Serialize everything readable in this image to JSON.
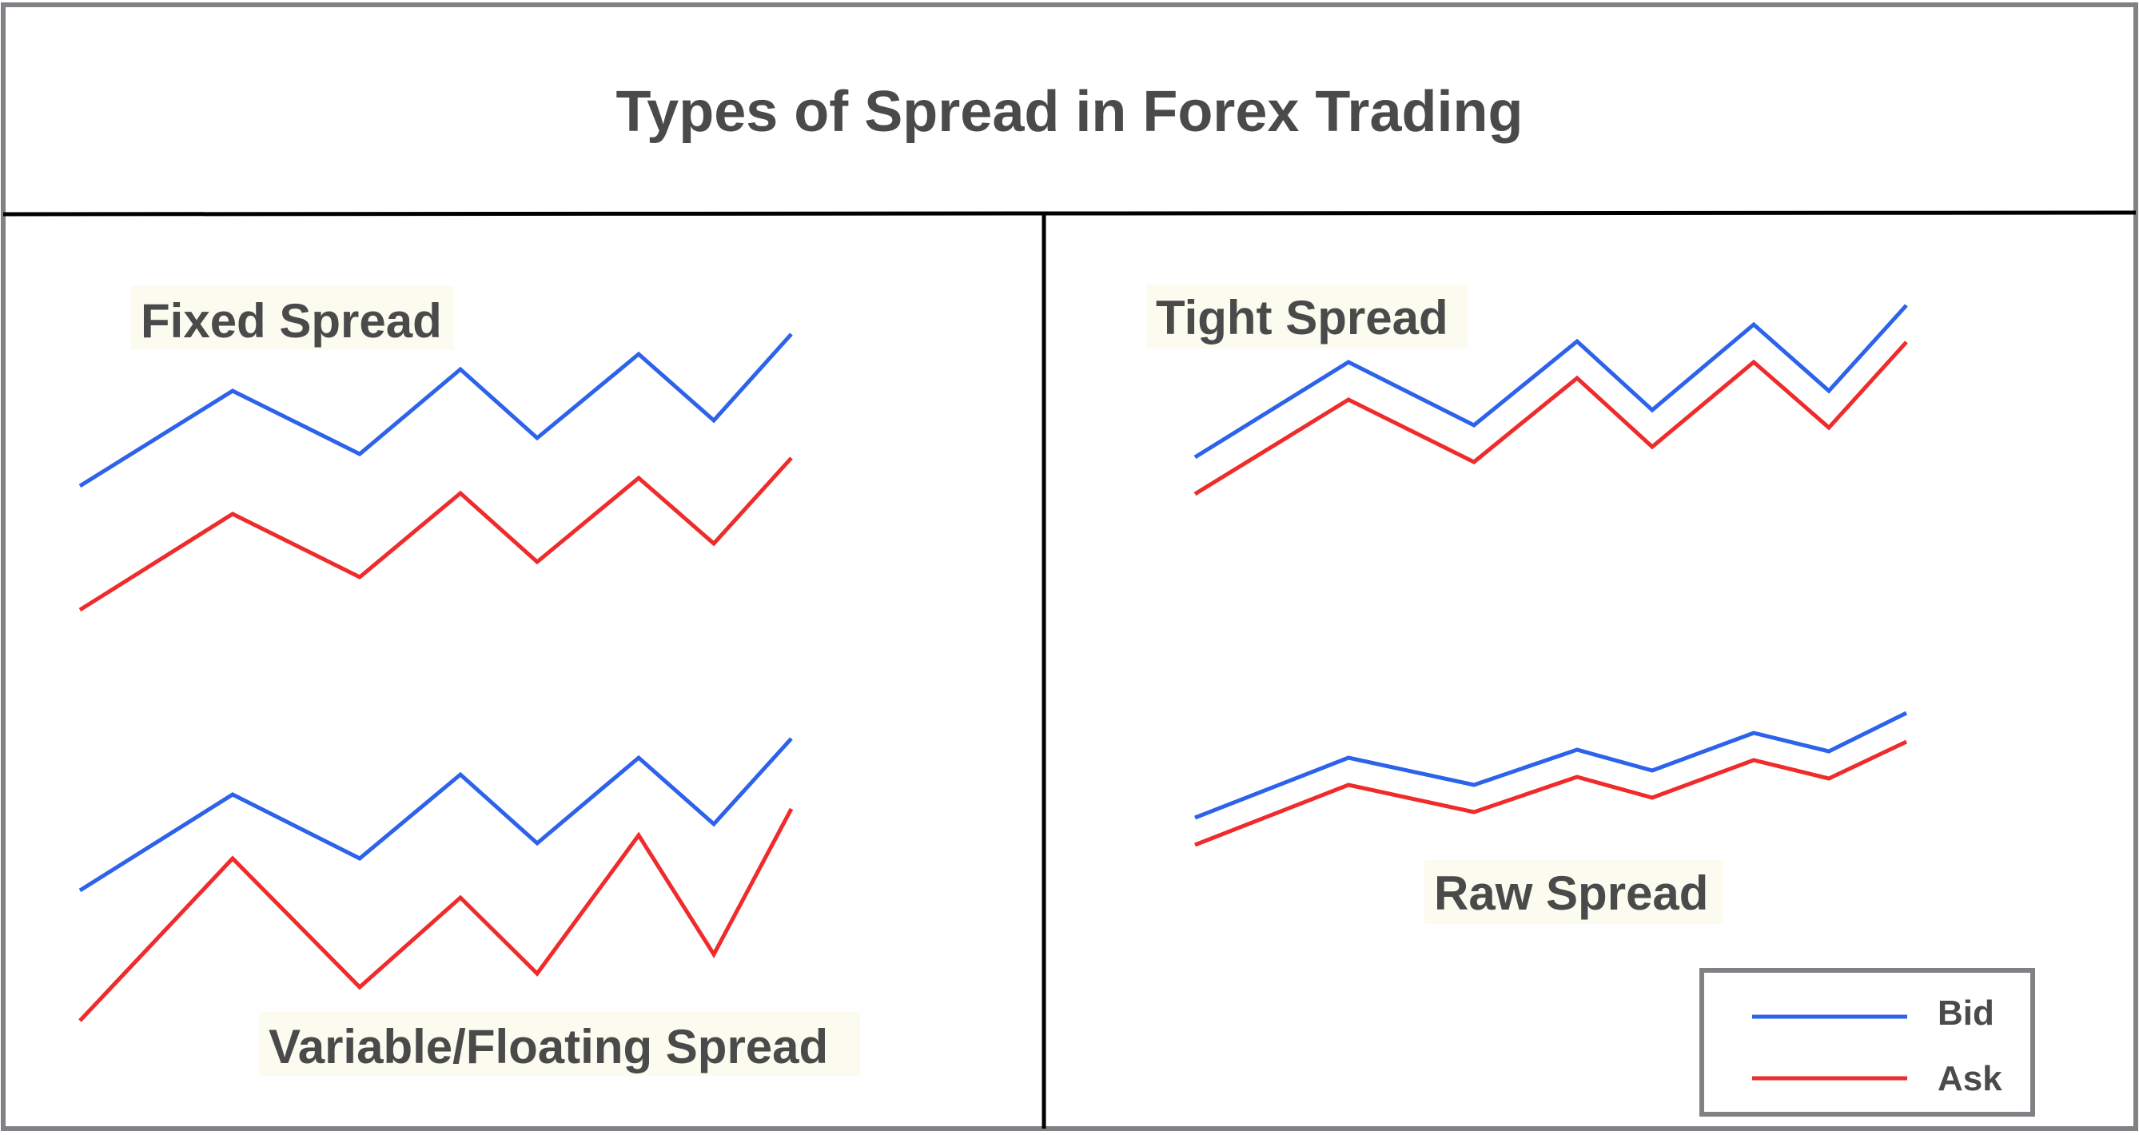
{
  "title": "Types of Spread in Forex Trading",
  "panels": {
    "fixed": {
      "label": "Fixed Spread"
    },
    "variable": {
      "label": "Variable/Floating Spread"
    },
    "tight": {
      "label": "Tight Spread"
    },
    "raw": {
      "label": "Raw Spread"
    }
  },
  "legend": {
    "bid": {
      "label": "Bid",
      "color": "#2d63ea"
    },
    "ask": {
      "label": "Ask",
      "color": "#ef2b2b"
    }
  },
  "colors": {
    "frame": "#808085",
    "divider": "#000000",
    "label_bg": "#fbfbf0",
    "text": "#4a4a4a"
  }
}
